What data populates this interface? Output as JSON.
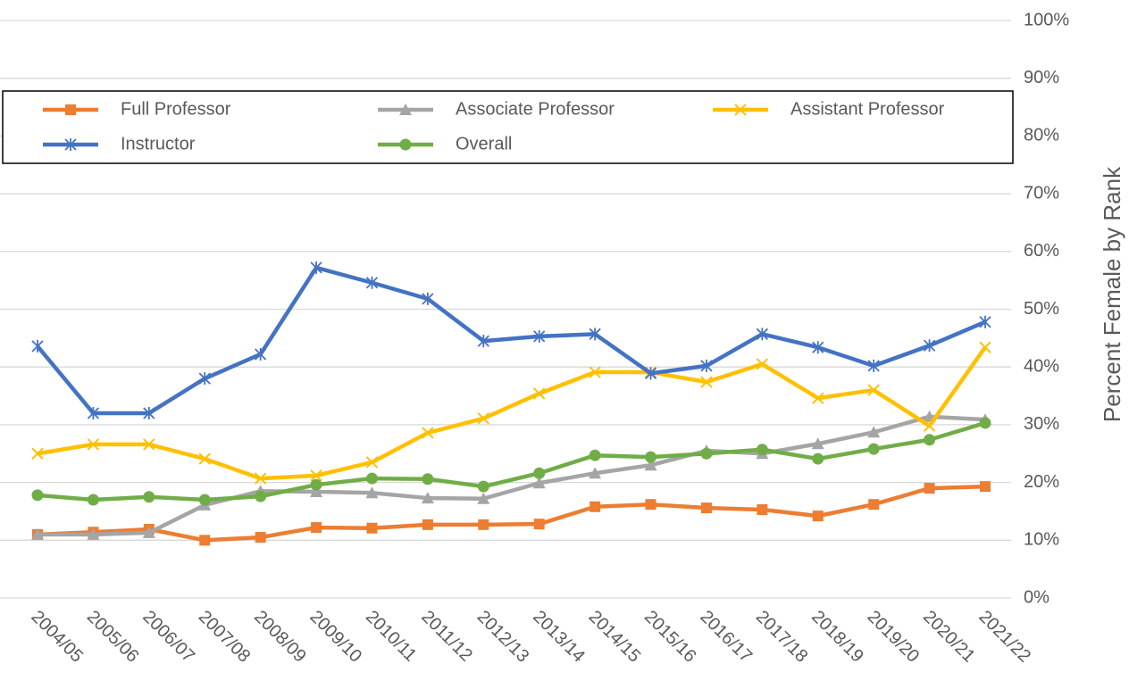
{
  "chart_data": {
    "type": "line",
    "y_axis_label": "Percent Female by Rank",
    "categories": [
      "2004/05",
      "2005/06",
      "2006/07",
      "2007/08",
      "2008/09",
      "2009/10",
      "2010/11",
      "2011/12",
      "2012/13",
      "2013/14",
      "2014/15",
      "2015/16",
      "2016/17",
      "2017/18",
      "2018/19",
      "2019/20",
      "2020/21",
      "2021/22"
    ],
    "series": [
      {
        "name": "Full Professor",
        "color": "#ed7d31",
        "marker": "square",
        "values": [
          11.0,
          11.4,
          11.9,
          10.0,
          10.5,
          12.2,
          12.1,
          12.7,
          12.7,
          12.8,
          15.8,
          16.2,
          15.6,
          15.3,
          14.2,
          16.2,
          19.0,
          19.3
        ]
      },
      {
        "name": "Associate Professor",
        "color": "#a5a5a5",
        "marker": "triangle",
        "values": [
          11.0,
          11.0,
          11.3,
          16.1,
          18.5,
          18.4,
          18.2,
          17.3,
          17.2,
          19.9,
          21.6,
          23.0,
          25.5,
          25.0,
          26.7,
          28.7,
          31.4,
          30.9
        ]
      },
      {
        "name": "Assistant Professor",
        "color": "#ffc000",
        "marker": "x",
        "values": [
          25.0,
          26.6,
          26.6,
          24.1,
          20.7,
          21.2,
          23.5,
          28.6,
          31.1,
          35.4,
          39.1,
          39.1,
          37.4,
          40.5,
          34.6,
          36.0,
          29.8,
          43.4
        ]
      },
      {
        "name": "Instructor",
        "color": "#4472c4",
        "marker": "asterisk",
        "values": [
          43.6,
          32.0,
          32.0,
          38.0,
          42.2,
          57.2,
          54.6,
          51.8,
          44.5,
          45.3,
          45.7,
          38.9,
          40.2,
          45.7,
          43.4,
          40.2,
          43.7,
          47.8
        ]
      },
      {
        "name": "Overall",
        "color": "#70ad47",
        "marker": "circle",
        "values": [
          17.8,
          17.0,
          17.5,
          17.0,
          17.6,
          19.6,
          20.7,
          20.6,
          19.3,
          21.6,
          24.7,
          24.4,
          25.0,
          25.7,
          24.1,
          25.8,
          27.4,
          30.3
        ]
      }
    ],
    "ylim": [
      0,
      100
    ],
    "yticks": [
      {
        "value": 0,
        "label": "0%"
      },
      {
        "value": 10,
        "label": "10%"
      },
      {
        "value": 20,
        "label": "20%"
      },
      {
        "value": 30,
        "label": "30%"
      },
      {
        "value": 40,
        "label": "40%"
      },
      {
        "value": 50,
        "label": "50%"
      },
      {
        "value": 60,
        "label": "60%"
      },
      {
        "value": 70,
        "label": "70%"
      },
      {
        "value": 80,
        "label": "80%"
      },
      {
        "value": 90,
        "label": "90%"
      },
      {
        "value": 100,
        "label": "100%"
      }
    ],
    "grid": true
  }
}
